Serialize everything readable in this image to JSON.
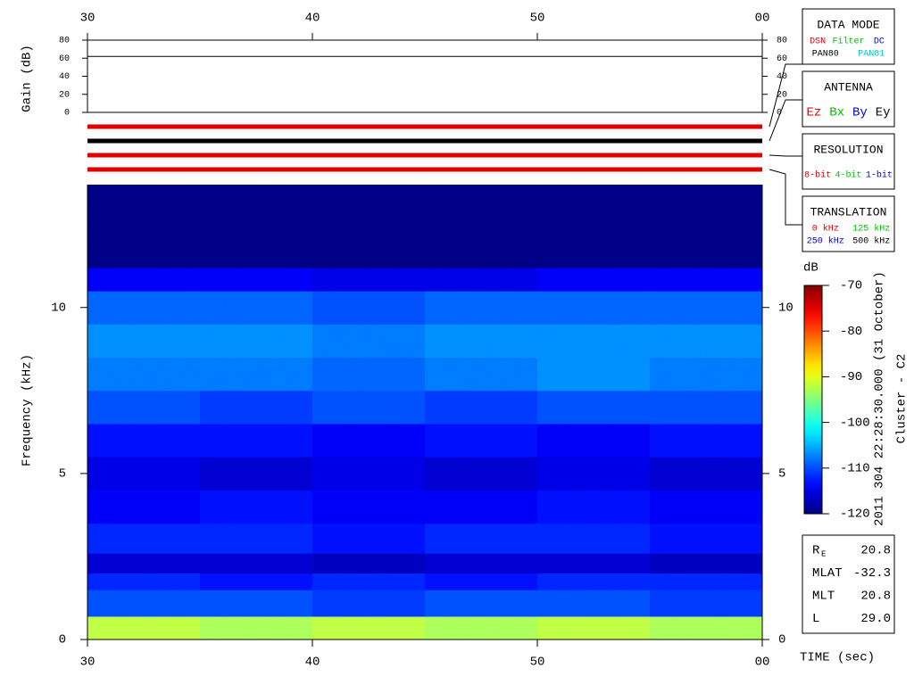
{
  "chart_data": [
    {
      "type": "line",
      "y_label": "Gain (dB)",
      "x": [
        30,
        60
      ],
      "xlim": [
        30,
        60
      ],
      "xticks": [
        30,
        40,
        50,
        {
          "value": 60,
          "label": "00"
        }
      ],
      "ylim": [
        0,
        80
      ],
      "yticks": [
        0,
        20,
        40,
        60,
        80
      ],
      "series": [
        {
          "color": "#000000",
          "values": [
            62,
            62
          ]
        }
      ]
    },
    {
      "type": "heatmap",
      "y_label": "Frequency (kHz)",
      "x_label": "TIME (sec)",
      "xlim": [
        30,
        60
      ],
      "xticks": [
        30,
        40,
        50,
        {
          "value": 60,
          "label": "00"
        }
      ],
      "ylim": [
        0,
        13.7
      ],
      "yticks": [
        0,
        5,
        10
      ],
      "x_bins": [
        30,
        35,
        40,
        45,
        50,
        55,
        60
      ],
      "y_bins": [
        0,
        0.7,
        1.5,
        2,
        2.6,
        3.5,
        4.5,
        5.5,
        6.5,
        7.5,
        8.5,
        9.5,
        10.5,
        11.2,
        13.7
      ],
      "z": [
        [
          -92,
          -93,
          -92,
          -93,
          -92,
          -93
        ],
        [
          -110,
          -110,
          -111,
          -110,
          -110,
          -111
        ],
        [
          -112,
          -113,
          -112,
          -113,
          -112,
          -112
        ],
        [
          -116,
          -116,
          -117,
          -116,
          -116,
          -117
        ],
        [
          -112,
          -112,
          -113,
          -112,
          -112,
          -113
        ],
        [
          -114,
          -113,
          -114,
          -114,
          -113,
          -114
        ],
        [
          -115,
          -116,
          -115,
          -116,
          -115,
          -116
        ],
        [
          -113,
          -113,
          -114,
          -113,
          -114,
          -113
        ],
        [
          -110,
          -111,
          -110,
          -111,
          -110,
          -110
        ],
        [
          -108,
          -108,
          -109,
          -108,
          -107,
          -108
        ],
        [
          -107,
          -107,
          -108,
          -107,
          -107,
          -107
        ],
        [
          -109,
          -109,
          -110,
          -109,
          -109,
          -109
        ],
        [
          -114,
          -114,
          -115,
          -115,
          -114,
          -114
        ],
        [
          -120,
          -120,
          -120,
          -120,
          -120,
          -120
        ]
      ],
      "colormap": "jet",
      "z_label": "dB",
      "zlim": [
        -120,
        -70
      ],
      "zticks": [
        -70,
        -80,
        -90,
        -100,
        -110,
        -120
      ]
    }
  ],
  "status_panels": [
    {
      "title": "DATA MODE",
      "selected": [
        0,
        0
      ],
      "options": [
        [
          {
            "label": "DSN",
            "color": "#e00000"
          },
          {
            "label": "Filter",
            "color": "#00c000"
          },
          {
            "label": "DC",
            "color": "#0000e0"
          }
        ],
        [
          {
            "label": "PAN80",
            "color": "#000000"
          },
          {
            "label": "PAN81",
            "color": "#00c8c8"
          }
        ]
      ]
    },
    {
      "title": "ANTENNA",
      "selected": [
        0,
        3
      ],
      "options": [
        [
          {
            "label": "Ez",
            "color": "#e00000"
          },
          {
            "label": "Bx",
            "color": "#00c000"
          },
          {
            "label": "By",
            "color": "#0000e0"
          },
          {
            "label": "Ey",
            "color": "#000000"
          }
        ]
      ]
    },
    {
      "title": "RESOLUTION",
      "selected": [
        0,
        0
      ],
      "options": [
        [
          {
            "label": "8-bit",
            "color": "#e00000"
          },
          {
            "label": "4-bit",
            "color": "#00c000"
          },
          {
            "label": "1-bit",
            "color": "#0000e0"
          }
        ]
      ]
    },
    {
      "title": "TRANSLATION",
      "selected": [
        0,
        0
      ],
      "options": [
        [
          {
            "label": "0 kHz",
            "color": "#e00000"
          },
          {
            "label": "125 kHz",
            "color": "#00c000"
          }
        ],
        [
          {
            "label": "250 kHz",
            "color": "#0000e0"
          },
          {
            "label": "500 kHz",
            "color": "#000000"
          }
        ]
      ]
    }
  ],
  "caption": "2011 304 22:28:30.000 (31 October)",
  "spacecraft": "Cluster - C2",
  "info": [
    {
      "label": "R",
      "sub": "E",
      "value": "20.8"
    },
    {
      "label": "MLAT",
      "value": "-32.3"
    },
    {
      "label": "MLT",
      "value": "20.8"
    },
    {
      "label": "L",
      "value": "29.0"
    }
  ]
}
